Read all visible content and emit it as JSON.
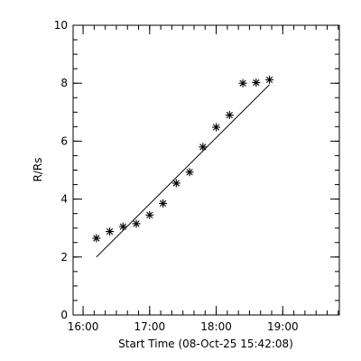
{
  "chart_data": {
    "type": "scatter",
    "title": "",
    "xlabel": "Start Time (08-Oct-25 15:42:08)",
    "ylabel": "R/Rs",
    "x_unit": "hours",
    "xlim": [
      15.85,
      19.85
    ],
    "ylim": [
      0,
      10
    ],
    "x_ticks": [
      {
        "value": 16,
        "label": "16:00"
      },
      {
        "value": 17,
        "label": "17:00"
      },
      {
        "value": 18,
        "label": "18:00"
      },
      {
        "value": 19,
        "label": "19:00"
      }
    ],
    "y_ticks": [
      {
        "value": 0,
        "label": "0"
      },
      {
        "value": 2,
        "label": "2"
      },
      {
        "value": 4,
        "label": "4"
      },
      {
        "value": 6,
        "label": "6"
      },
      {
        "value": 8,
        "label": "8"
      },
      {
        "value": 10,
        "label": "10"
      }
    ],
    "grid": false,
    "colors": {
      "marker": "#000000",
      "fit": "#000000",
      "axes": "#000000"
    },
    "series": [
      {
        "marker": "asterisk",
        "points": [
          {
            "x": 16.2,
            "y": 2.65
          },
          {
            "x": 16.4,
            "y": 2.88
          },
          {
            "x": 16.6,
            "y": 3.05
          },
          {
            "x": 16.8,
            "y": 3.15
          },
          {
            "x": 17.0,
            "y": 3.45
          },
          {
            "x": 17.2,
            "y": 3.85
          },
          {
            "x": 17.4,
            "y": 4.55
          },
          {
            "x": 17.6,
            "y": 4.93
          },
          {
            "x": 17.8,
            "y": 5.8
          },
          {
            "x": 18.0,
            "y": 6.48
          },
          {
            "x": 18.2,
            "y": 6.9
          },
          {
            "x": 18.4,
            "y": 8.0
          },
          {
            "x": 18.6,
            "y": 8.02
          },
          {
            "x": 18.8,
            "y": 8.12
          }
        ]
      }
    ],
    "fit_line": {
      "from": {
        "x": 16.2,
        "y": 2.0
      },
      "to": {
        "x": 18.8,
        "y": 7.95
      }
    }
  }
}
